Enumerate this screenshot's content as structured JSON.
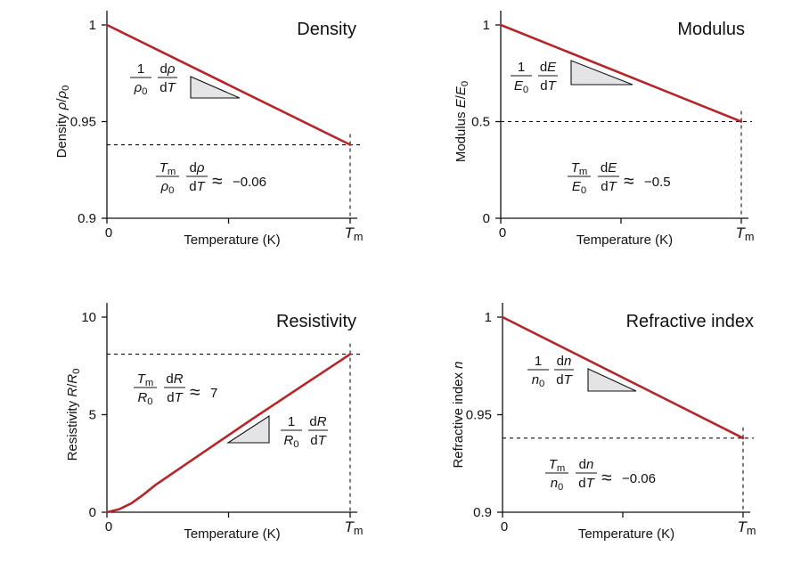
{
  "chart_data": [
    {
      "type": "line",
      "title": "Density",
      "ylabel": "Density ρ/ρ₀",
      "xlabel": "Temperature (K)",
      "x_tick_labels": [
        "0",
        "Tm"
      ],
      "y_ticks": [
        0.9,
        0.95,
        1
      ],
      "y_tick_labels": [
        "0.9",
        "0.95",
        "1"
      ],
      "ylim": [
        0.9,
        1.0
      ],
      "xlim": [
        0,
        1
      ],
      "series": [
        {
          "x": [
            0,
            1
          ],
          "y": [
            1.0,
            0.938
          ]
        }
      ],
      "reference_level": 0.938,
      "slope_label": {
        "num": "1",
        "den": "ρ₀",
        "dnum": "dρ",
        "dden": "dT"
      },
      "annotation": {
        "num": "Tm",
        "den": "ρ₀",
        "dnum": "dρ",
        "dden": "dT",
        "value": "≈ −0.06"
      }
    },
    {
      "type": "line",
      "title": "Modulus",
      "ylabel": "Modulus E/E₀",
      "xlabel": "Temperature (K)",
      "x_tick_labels": [
        "0",
        "Tm"
      ],
      "y_ticks": [
        0,
        0.5,
        1
      ],
      "y_tick_labels": [
        "0",
        "0.5",
        "1"
      ],
      "ylim": [
        0,
        1.0
      ],
      "xlim": [
        0,
        1
      ],
      "series": [
        {
          "x": [
            0,
            1
          ],
          "y": [
            1.0,
            0.5
          ]
        }
      ],
      "reference_level": 0.5,
      "slope_label": {
        "num": "1",
        "den": "E₀",
        "dnum": "dE",
        "dden": "dT"
      },
      "annotation": {
        "num": "Tm",
        "den": "E₀",
        "dnum": "dE",
        "dden": "dT",
        "value": "≈ −0.5"
      }
    },
    {
      "type": "line",
      "title": "Resistivity",
      "ylabel": "Resistivity R/R₀",
      "xlabel": "Temperature (K)",
      "x_tick_labels": [
        "0",
        "Tm"
      ],
      "y_ticks": [
        0,
        5,
        10
      ],
      "y_tick_labels": [
        "0",
        "5",
        "10"
      ],
      "ylim": [
        0,
        10
      ],
      "xlim": [
        0,
        1
      ],
      "series": [
        {
          "x": [
            0,
            0.05,
            0.1,
            0.15,
            0.2,
            0.4,
            0.6,
            0.8,
            1.0
          ],
          "y": [
            0,
            0.15,
            0.45,
            0.9,
            1.4,
            3.1,
            4.8,
            6.45,
            8.1
          ]
        }
      ],
      "reference_level": 8.1,
      "slope_label": {
        "num": "1",
        "den": "R₀",
        "dnum": "dR",
        "dden": "dT"
      },
      "annotation": {
        "num": "Tm",
        "den": "R₀",
        "dnum": "dR",
        "dden": "dT",
        "value": "≈ 7"
      }
    },
    {
      "type": "line",
      "title": "Refractive index",
      "ylabel": "Refractive index n",
      "xlabel": "Temperature (K)",
      "x_tick_labels": [
        "0",
        "Tm"
      ],
      "y_ticks": [
        0.9,
        0.95,
        1
      ],
      "y_tick_labels": [
        "0.9",
        "0.95",
        "1"
      ],
      "ylim": [
        0.9,
        1.0
      ],
      "xlim": [
        0,
        1
      ],
      "series": [
        {
          "x": [
            0,
            1
          ],
          "y": [
            1.0,
            0.938
          ]
        }
      ],
      "reference_level": 0.938,
      "slope_label": {
        "num": "1",
        "den": "n₀",
        "dnum": "dn",
        "dden": "dT"
      },
      "annotation": {
        "num": "Tm",
        "den": "n₀",
        "dnum": "dn",
        "dden": "dT",
        "value": "≈ −0.06"
      }
    }
  ],
  "colors": {
    "series": "#b5262a",
    "triangle_fill": "#e4e4e6",
    "axis": "#111111"
  }
}
